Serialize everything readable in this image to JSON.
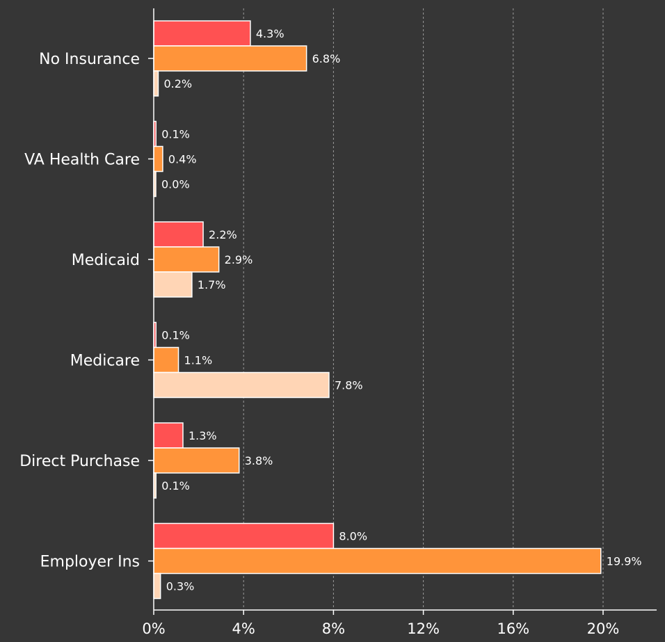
{
  "chart_data": {
    "type": "bar",
    "orientation": "horizontal",
    "title": "",
    "xlabel": "",
    "ylabel": "",
    "categories": [
      "No Insurance",
      "VA Health Care",
      "Medicaid",
      "Medicare",
      "Direct Purchase",
      "Employer Ins"
    ],
    "series": [
      {
        "color": "#ff5152",
        "values": [
          4.3,
          0.1,
          2.2,
          0.1,
          1.3,
          8.0
        ],
        "labels": [
          "4.3%",
          "0.1%",
          "2.2%",
          "0.1%",
          "1.3%",
          "8.0%"
        ]
      },
      {
        "color": "#ff943a",
        "values": [
          6.8,
          0.4,
          2.9,
          1.1,
          3.8,
          19.9
        ],
        "labels": [
          "6.8%",
          "0.4%",
          "2.9%",
          "1.1%",
          "3.8%",
          "19.9%"
        ]
      },
      {
        "color": "#ffd5b5",
        "values": [
          0.2,
          0.0,
          1.7,
          7.8,
          0.1,
          0.3
        ],
        "labels": [
          "0.2%",
          "0.0%",
          "1.7%",
          "7.8%",
          "0.1%",
          "0.3%"
        ]
      }
    ],
    "xticks": [
      0,
      4,
      8,
      12,
      16,
      20
    ],
    "xtick_labels": [
      "0%",
      "4%",
      "8%",
      "12%",
      "16%",
      "20%"
    ],
    "xlim": [
      0,
      22.4
    ],
    "grid": "vertical-dashed",
    "legend": "none"
  }
}
